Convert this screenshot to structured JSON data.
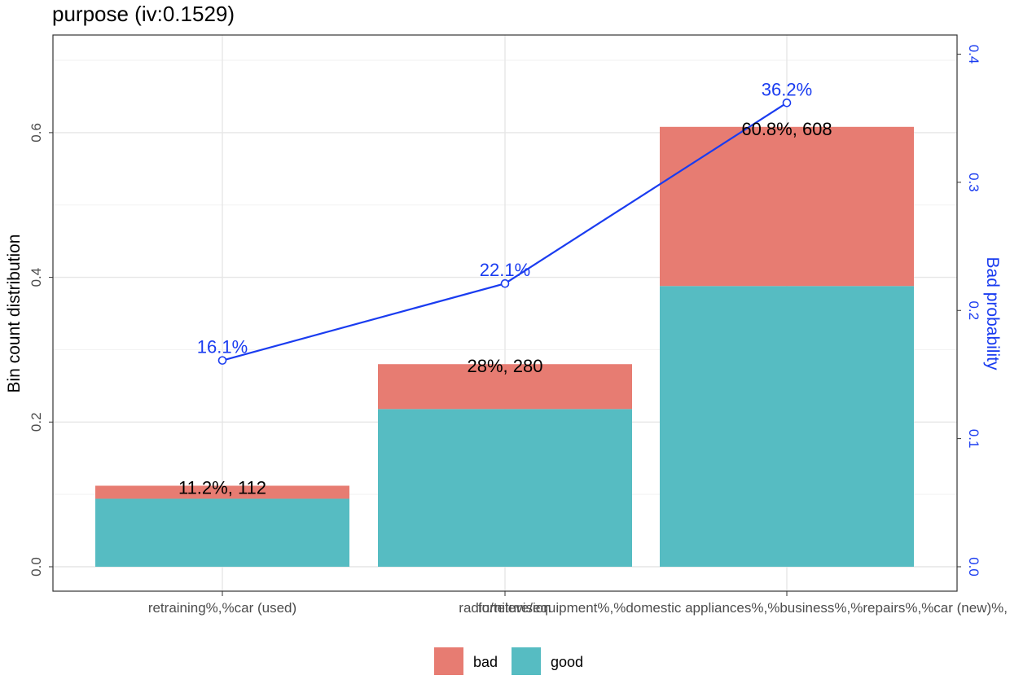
{
  "chart_data": {
    "type": "bar",
    "title": "purpose  (iv:0.1529)",
    "ylabel": "Bin count distribution",
    "y2label": "Bad probability",
    "ylim": [
      0,
      0.7
    ],
    "y2lim": [
      0,
      0.4
    ],
    "yticks": [
      0.0,
      0.2,
      0.4,
      0.6
    ],
    "y2ticks": [
      0.0,
      0.1,
      0.2,
      0.3,
      0.4
    ],
    "grid": true,
    "legend_position": "bottom",
    "categories": [
      "retraining%,%car (used)",
      "radio/television",
      "furniture/equipment%,%domestic appliances%,%business%,%repairs%,%car (new)%,"
    ],
    "series": [
      {
        "name": "good",
        "color": "#56bcc2",
        "values": [
          0.094,
          0.218,
          0.388
        ]
      },
      {
        "name": "bad",
        "color": "#e77c72",
        "values": [
          0.018,
          0.062,
          0.22
        ]
      }
    ],
    "bar_labels": [
      "11.2%, 112",
      "28%, 280",
      "60.8%, 608"
    ],
    "bad_probability": {
      "values": [
        0.161,
        0.221,
        0.362
      ],
      "labels": [
        "16.1%",
        "22.1%",
        "36.2%"
      ],
      "color": "#1a3cf0"
    }
  }
}
